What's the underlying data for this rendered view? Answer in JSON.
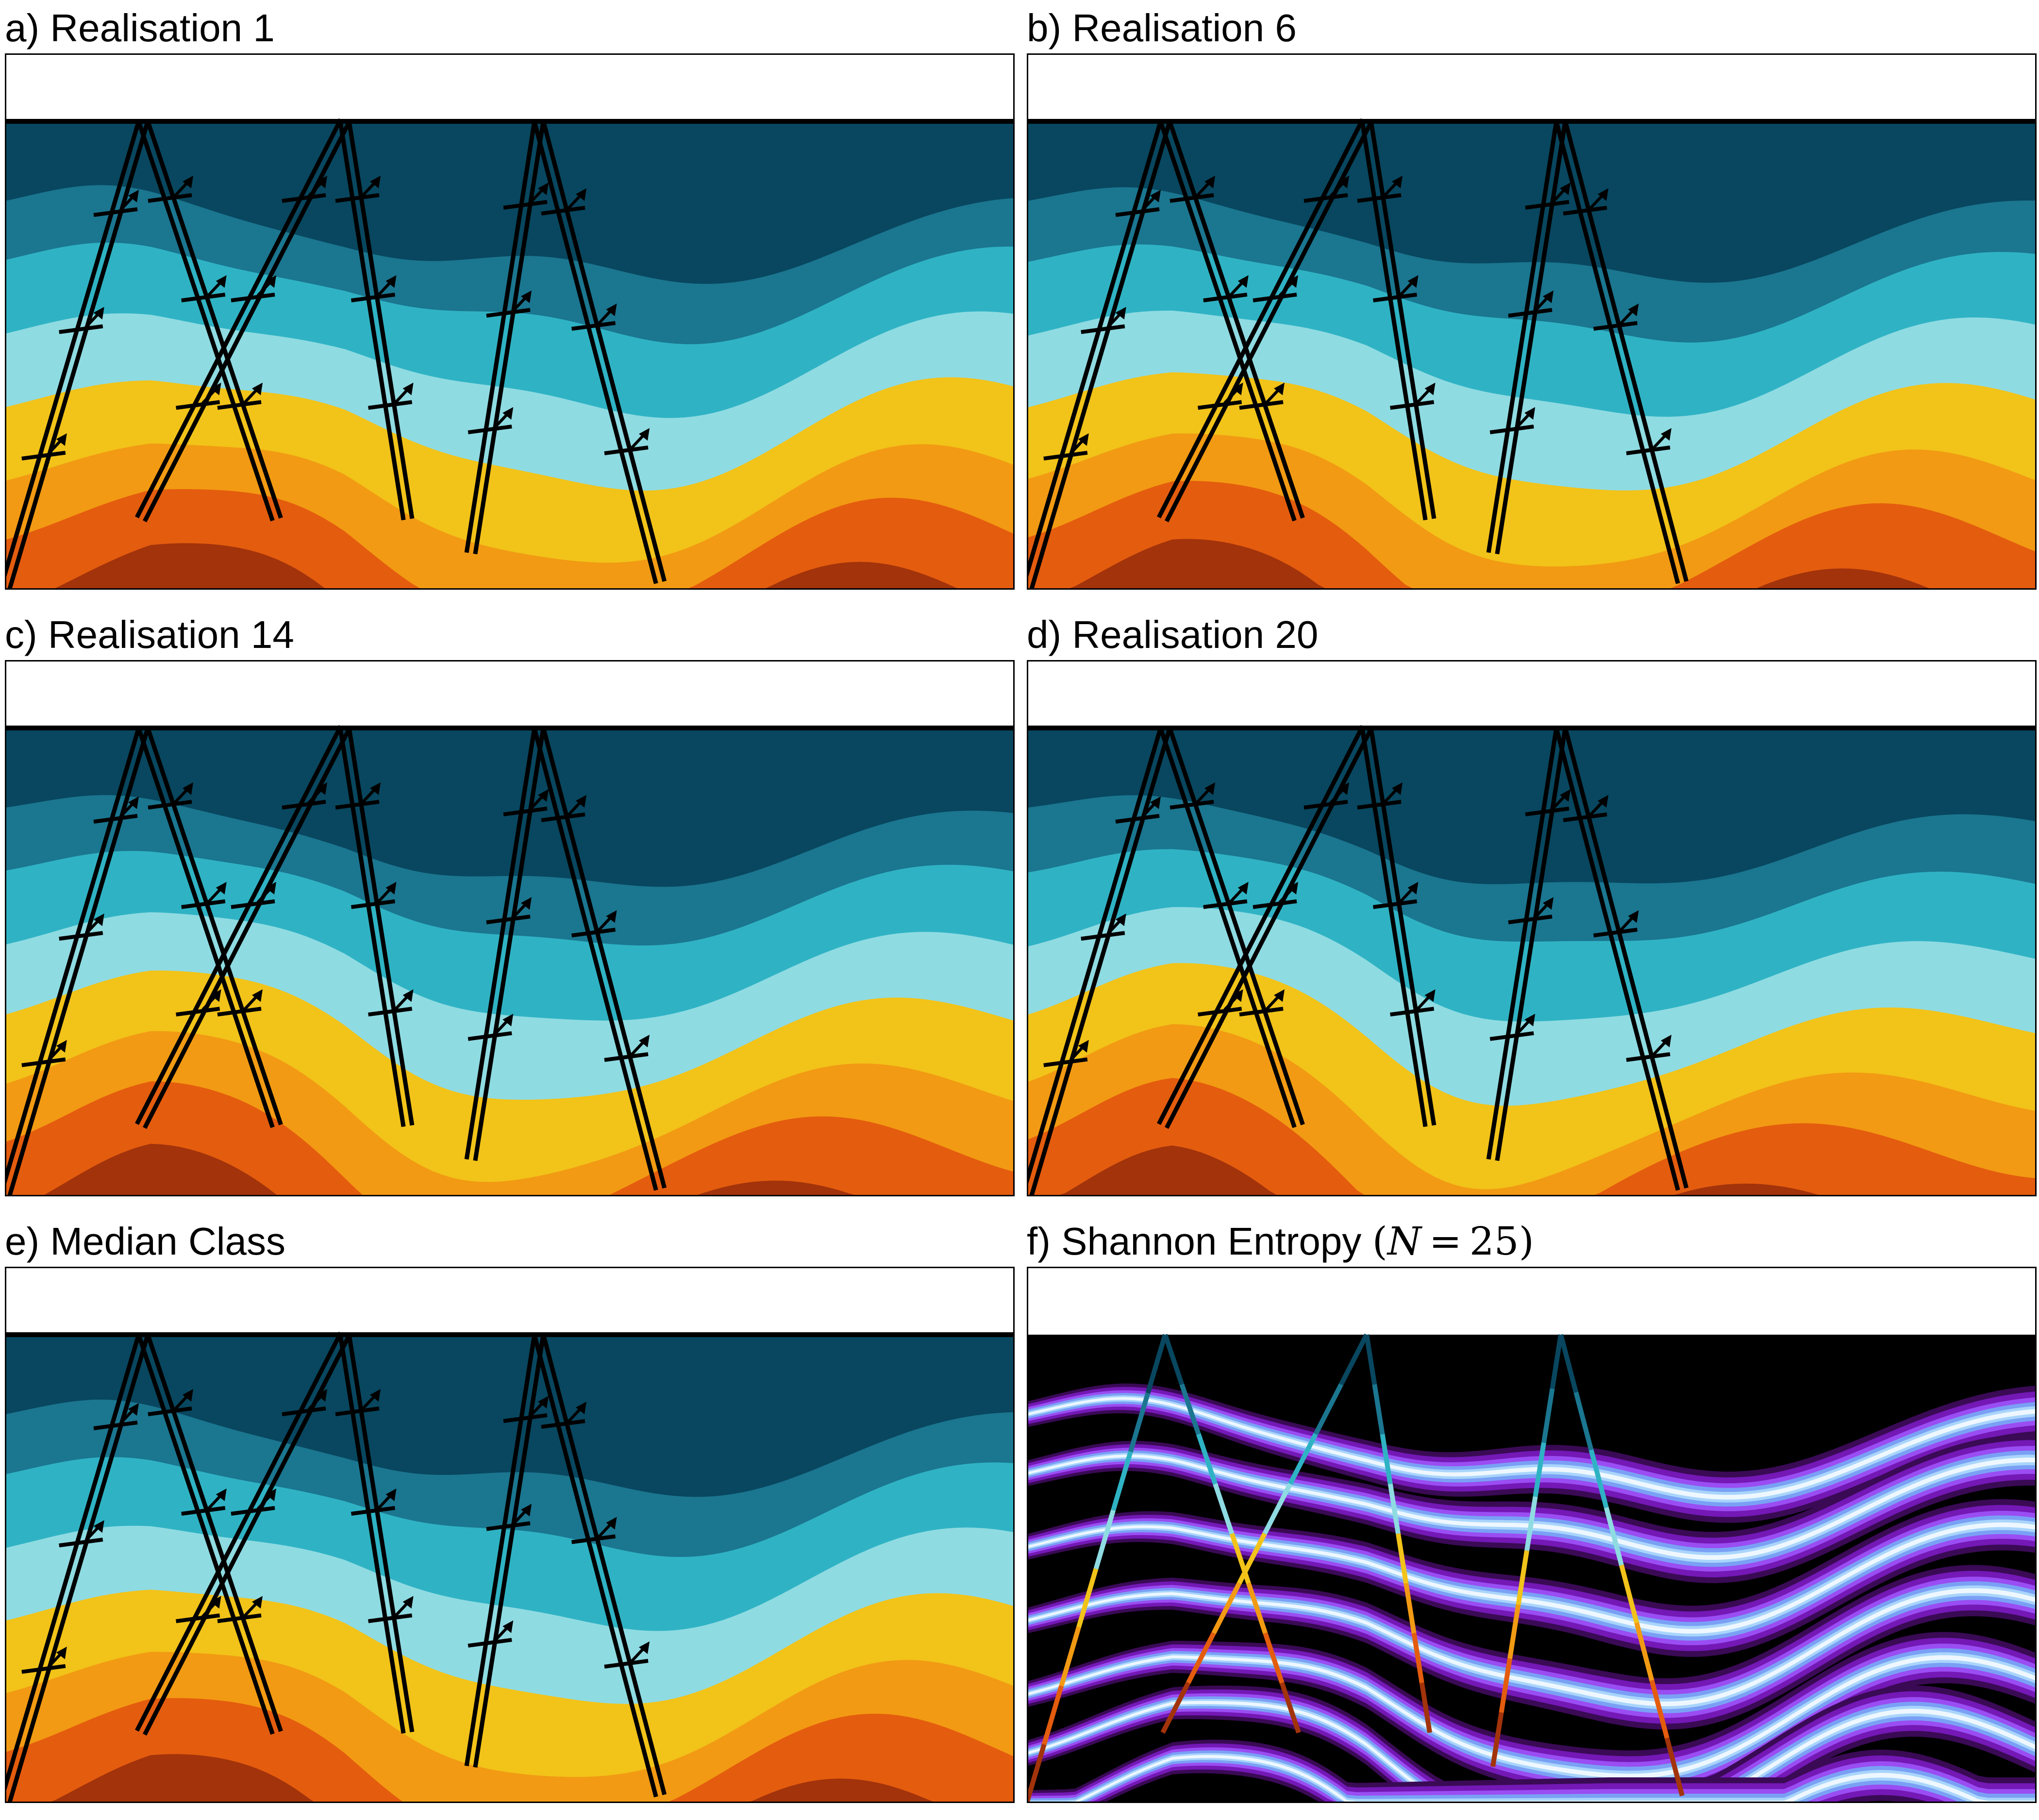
{
  "panels": [
    {
      "id": "a",
      "title": "a) Realisation 1"
    },
    {
      "id": "b",
      "title": "b) Realisation 6"
    },
    {
      "id": "c",
      "title": "c) Realisation 14"
    },
    {
      "id": "d",
      "title": "d) Realisation 20"
    },
    {
      "id": "e",
      "title": "e) Median Class"
    },
    {
      "id": "f",
      "title_prefix": "f) Shannon Entropy ",
      "title_math": {
        "open": "(",
        "var": "N",
        "eq": " = 25",
        "close": ")"
      }
    }
  ],
  "colors": {
    "layers": [
      "#08475f",
      "#1b7690",
      "#2fb3c4",
      "#8fdbe2",
      "#f2c319",
      "#f29a13",
      "#e45c0e",
      "#a2330b"
    ],
    "entropy_background": "#000000",
    "entropy_band": [
      "#3a0a55",
      "#7418b6",
      "#9a4df2",
      "#7aa0f5",
      "#a9d5fb",
      "#eef7ff"
    ],
    "fault": "#000000"
  }
}
